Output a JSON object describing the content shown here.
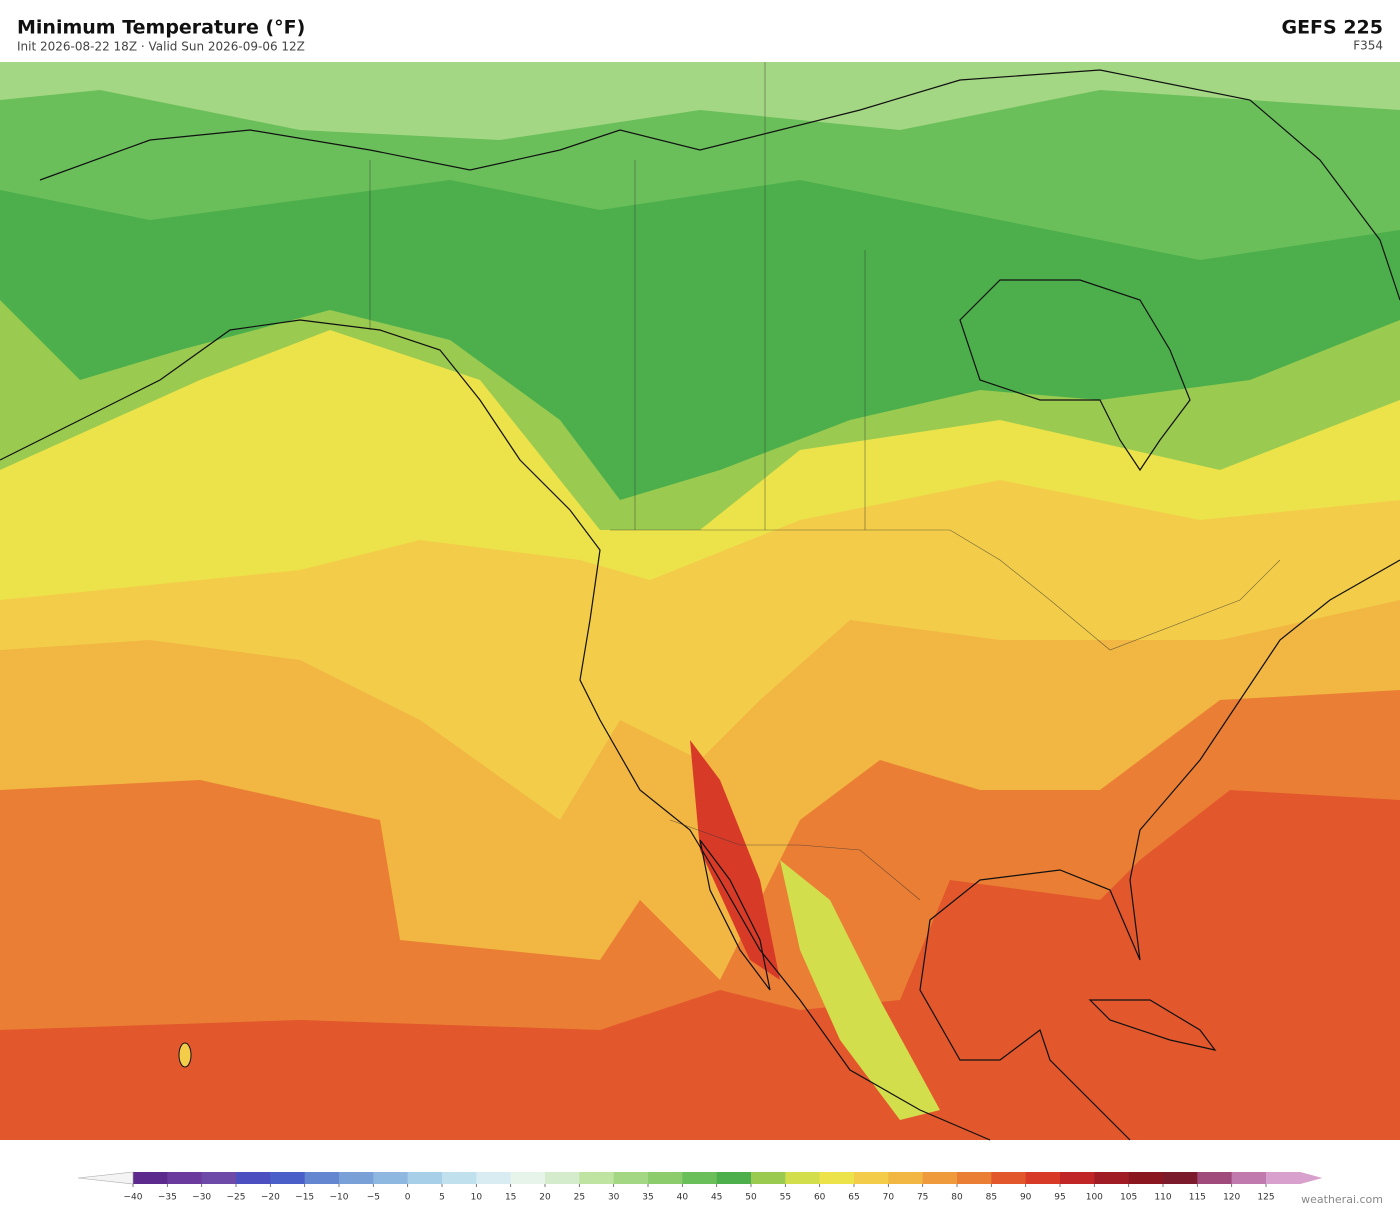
{
  "header": {
    "title": "Minimum Temperature  (°F)",
    "subtitle": "Init 2026-08-22 18Z  ·  Valid Sun 2026-09-06 12Z",
    "model": "GEFS  225",
    "forecast_hour": "F354"
  },
  "colorbar": {
    "ticks": [
      {
        "value": -40,
        "label": "−40"
      },
      {
        "value": -35,
        "label": "−35"
      },
      {
        "value": -30,
        "label": "−30"
      },
      {
        "value": -25,
        "label": "−25"
      },
      {
        "value": -20,
        "label": "−20"
      },
      {
        "value": -15,
        "label": "−15"
      },
      {
        "value": -10,
        "label": "−10"
      },
      {
        "value": -5,
        "label": "−5"
      },
      0,
      5,
      10,
      15,
      20,
      25,
      30,
      35,
      40,
      45,
      50,
      55,
      60,
      65,
      70,
      75,
      80,
      85,
      90,
      95,
      100,
      105,
      110,
      115,
      120,
      125
    ],
    "colors": [
      "#5b2a8c",
      "#6a3a9c",
      "#6e4aa8",
      "#4b4fc0",
      "#4a60c8",
      "#6486d0",
      "#7aa0d8",
      "#8fb8e0",
      "#a8cfe8",
      "#c0e0ee",
      "#d8ecf2",
      "#e6f4ea",
      "#d4eccb",
      "#bfe3a0",
      "#a3d784",
      "#8ccc6c",
      "#6abf5a",
      "#4caf4c",
      "#9acb50",
      "#d3de4c",
      "#ece34a",
      "#f3cd49",
      "#f2b642",
      "#ef9a3c",
      "#ea7e34",
      "#e2572c",
      "#d83a28",
      "#c02626",
      "#a01c24",
      "#8a1620",
      "#7a1a2a",
      "#a04a7c",
      "#c07aae",
      "#d8a0cc"
    ],
    "under_color": "#f4f4f4",
    "over_color": "#d8a0cc"
  },
  "footer": {
    "watermark": "weatherai.com"
  }
}
